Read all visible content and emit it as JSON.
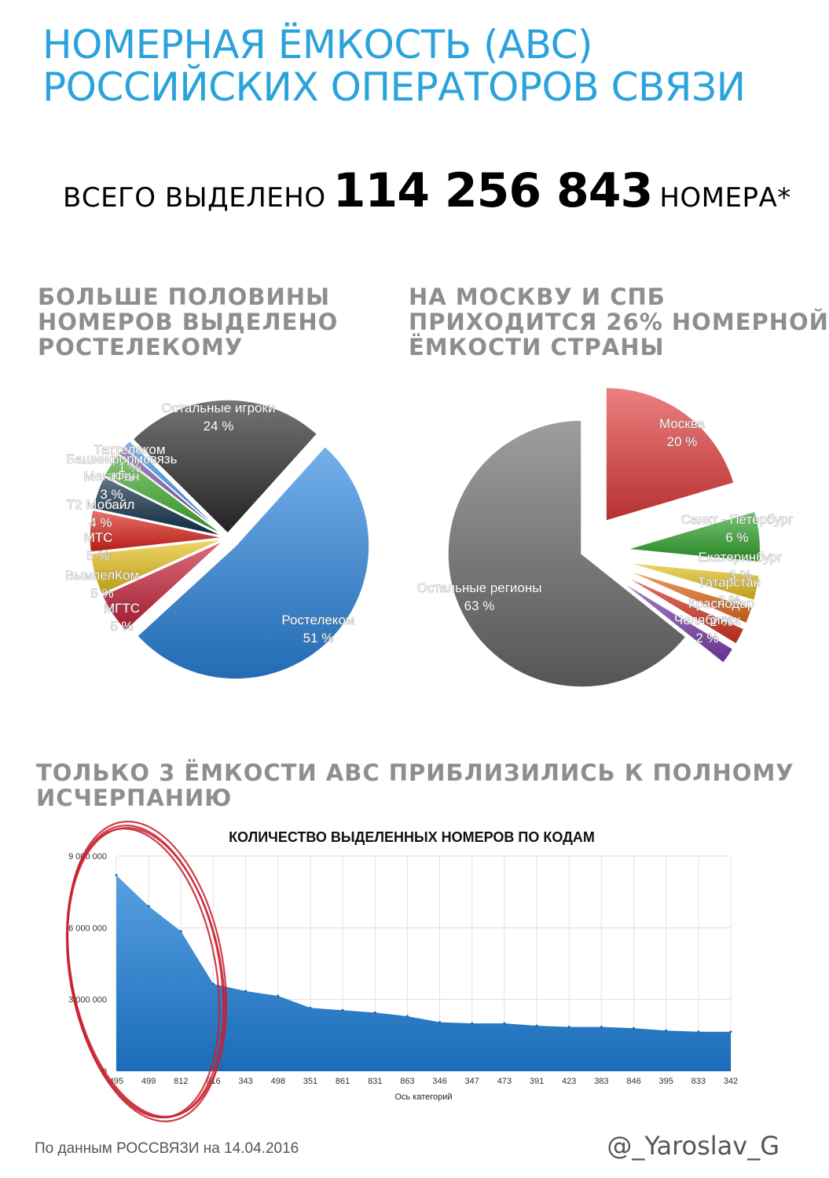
{
  "title": {
    "line1": "НОМЕРНАЯ ЁМКОСТЬ (ABC)",
    "line2": "РОССИЙСКИХ ОПЕРАТОРОВ СВЯЗИ"
  },
  "total": {
    "prefix": "ВСЕГО ВЫДЕЛЕНО",
    "value": "114 256 843",
    "suffix": "НОМЕРА*"
  },
  "sections": {
    "operators_heading": [
      "БОЛЬШЕ ПОЛОВИНЫ",
      "НОМЕРОВ ВЫДЕЛЕНО",
      "РОСТЕЛЕКОМУ"
    ],
    "regions_heading": [
      "НА МОСКВУ И СПБ",
      "ПРИХОДИТСЯ 26% НОМЕРНОЙ",
      "ЁМКОСТИ СТРАНЫ"
    ],
    "codes_heading": [
      "ТОЛЬКО 3 ЁМКОСТИ ABC ПРИБЛИЗИЛИСЬ К ПОЛНОМУ",
      "ИСЧЕРПАНИЮ"
    ]
  },
  "chart_data": [
    {
      "type": "pie",
      "slices": [
        {
          "label": "Ростелеком",
          "value": 51,
          "pct": "51 %",
          "color": "#2a86e0"
        },
        {
          "label": "МГТС",
          "value": 5,
          "pct": "5 %",
          "color": "#c8223a"
        },
        {
          "label": "ВымпелКом",
          "value": 5,
          "pct": "5 %",
          "color": "#e8c21a"
        },
        {
          "label": "МТС",
          "value": 5,
          "pct": "5 %",
          "color": "#e0241c"
        },
        {
          "label": "Т2 Мобайл",
          "value": 4,
          "pct": "4 %",
          "color": "#0e2e48"
        },
        {
          "label": "МегаФон",
          "value": 3,
          "pct": "3 %",
          "color": "#3fae2a"
        },
        {
          "label": "Башинформсвязь",
          "value": 1,
          "pct": "1 %",
          "color": "#7b4fa8"
        },
        {
          "label": "Таттелеком",
          "value": 1,
          "pct": "1 %",
          "color": "#3a8ee6"
        },
        {
          "label": "Остальные игроки",
          "value": 24,
          "pct": "24 %",
          "color": "#2b2b2b"
        }
      ]
    },
    {
      "type": "pie",
      "slices": [
        {
          "label": "Москва",
          "value": 20,
          "pct": "20 %",
          "color": "#e43c3c"
        },
        {
          "label": "Санкт - Петербург",
          "value": 6,
          "pct": "6 %",
          "color": "#2fa52a"
        },
        {
          "label": "Екатеринбург",
          "value": 3,
          "pct": "3 %",
          "color": "#e8c21a"
        },
        {
          "label": "Татарстан",
          "value": 2,
          "pct": "2 %",
          "color": "#e86a1a"
        },
        {
          "label": "Краснодар",
          "value": 2,
          "pct": "2 %",
          "color": "#d8321e"
        },
        {
          "label": "Челябинск",
          "value": 2,
          "pct": "2 %",
          "color": "#7b3fb0"
        },
        {
          "label": "Остальные регионы",
          "value": 63,
          "pct": "63 %",
          "color": "#6a6a6a"
        }
      ]
    },
    {
      "type": "area",
      "title": "КОЛИЧЕСТВО ВЫДЕЛЕННЫХ НОМЕРОВ ПО КОДАМ",
      "xlabel": "Ось категорий",
      "ylabel": "",
      "ylim": [
        0,
        9000000
      ],
      "yticks": [
        {
          "value": 0,
          "label": "0"
        },
        {
          "value": 3000000,
          "label": "3 000 000"
        },
        {
          "value": 6000000,
          "label": "6 000 000"
        },
        {
          "value": 9000000,
          "label": "9 000 000"
        }
      ],
      "categories": [
        "495",
        "499",
        "812",
        "916",
        "343",
        "498",
        "351",
        "861",
        "831",
        "863",
        "346",
        "347",
        "473",
        "391",
        "423",
        "383",
        "846",
        "395",
        "833",
        "342"
      ],
      "values": [
        8200000,
        6900000,
        5850000,
        3650000,
        3350000,
        3150000,
        2650000,
        2550000,
        2450000,
        2300000,
        2050000,
        2000000,
        2000000,
        1900000,
        1850000,
        1850000,
        1800000,
        1700000,
        1650000,
        1650000
      ],
      "grid": true,
      "color": "#1f7fd8"
    }
  ],
  "footer": {
    "source": "По данным РОССВЯЗИ на 14.04.2016",
    "author": "@_Yaroslav_G"
  }
}
